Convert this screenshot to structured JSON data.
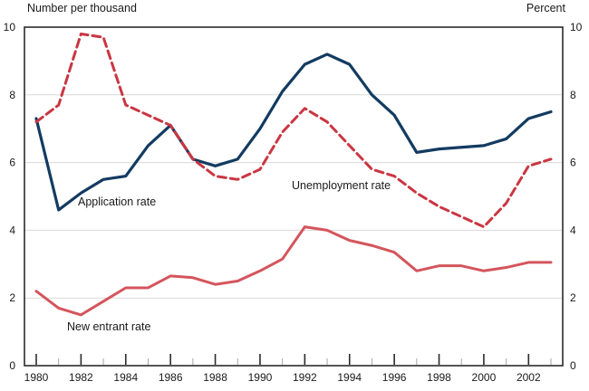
{
  "colors": {
    "background": "#ffffff",
    "grid": "#d9d9d9",
    "axis": "#2b2b2b",
    "minor_tick": "#a6a6a6",
    "text": "#1a1a1a"
  },
  "chart_data": {
    "type": "line",
    "left_axis_title": "Number per thousand",
    "right_axis_title": "Percent",
    "ylim": [
      0,
      10
    ],
    "y_ticks": [
      0,
      2,
      4,
      6,
      8,
      10
    ],
    "grid_values": [
      2,
      4,
      6,
      8
    ],
    "grid": "horizontal-only",
    "legend_position": "inline-labels",
    "x": [
      1980,
      1981,
      1982,
      1983,
      1984,
      1985,
      1986,
      1987,
      1988,
      1989,
      1990,
      1991,
      1992,
      1993,
      1994,
      1995,
      1996,
      1997,
      1998,
      1999,
      2000,
      2001,
      2002,
      2003
    ],
    "x_tick_labels": [
      1980,
      1982,
      1984,
      1986,
      1988,
      1990,
      1992,
      1994,
      1996,
      1998,
      2000,
      2002
    ],
    "series": [
      {
        "id": "application-rate",
        "name": "Application rate",
        "axis": "left",
        "color": "#133b61",
        "dash": "",
        "width": 3.2,
        "values": [
          7.3,
          4.6,
          5.1,
          5.5,
          5.6,
          6.5,
          7.1,
          6.1,
          5.9,
          6.1,
          7.0,
          8.1,
          8.9,
          9.2,
          8.9,
          8.0,
          7.4,
          6.3,
          6.4,
          6.45,
          6.5,
          6.7,
          7.3,
          7.5
        ]
      },
      {
        "id": "unemployment-rate",
        "name": "Unemployment rate",
        "axis": "right",
        "color": "#ca3642",
        "dash": "9 5",
        "width": 3,
        "values": [
          7.2,
          7.7,
          9.8,
          9.7,
          7.7,
          7.4,
          7.1,
          6.1,
          5.6,
          5.5,
          5.8,
          6.9,
          7.6,
          7.2,
          6.5,
          5.8,
          5.6,
          5.1,
          4.7,
          4.4,
          4.1,
          4.8,
          5.9,
          6.1
        ]
      },
      {
        "id": "new-entrant-rate",
        "name": "New entrant rate",
        "axis": "left",
        "color": "#d4555c",
        "dash": "",
        "width": 3,
        "values": [
          2.2,
          1.7,
          1.5,
          1.9,
          2.3,
          2.3,
          2.65,
          2.6,
          2.4,
          2.5,
          2.8,
          3.15,
          4.1,
          4.0,
          3.7,
          3.55,
          3.35,
          2.8,
          2.95,
          2.95,
          2.8,
          2.9,
          3.05,
          3.05
        ]
      }
    ]
  }
}
